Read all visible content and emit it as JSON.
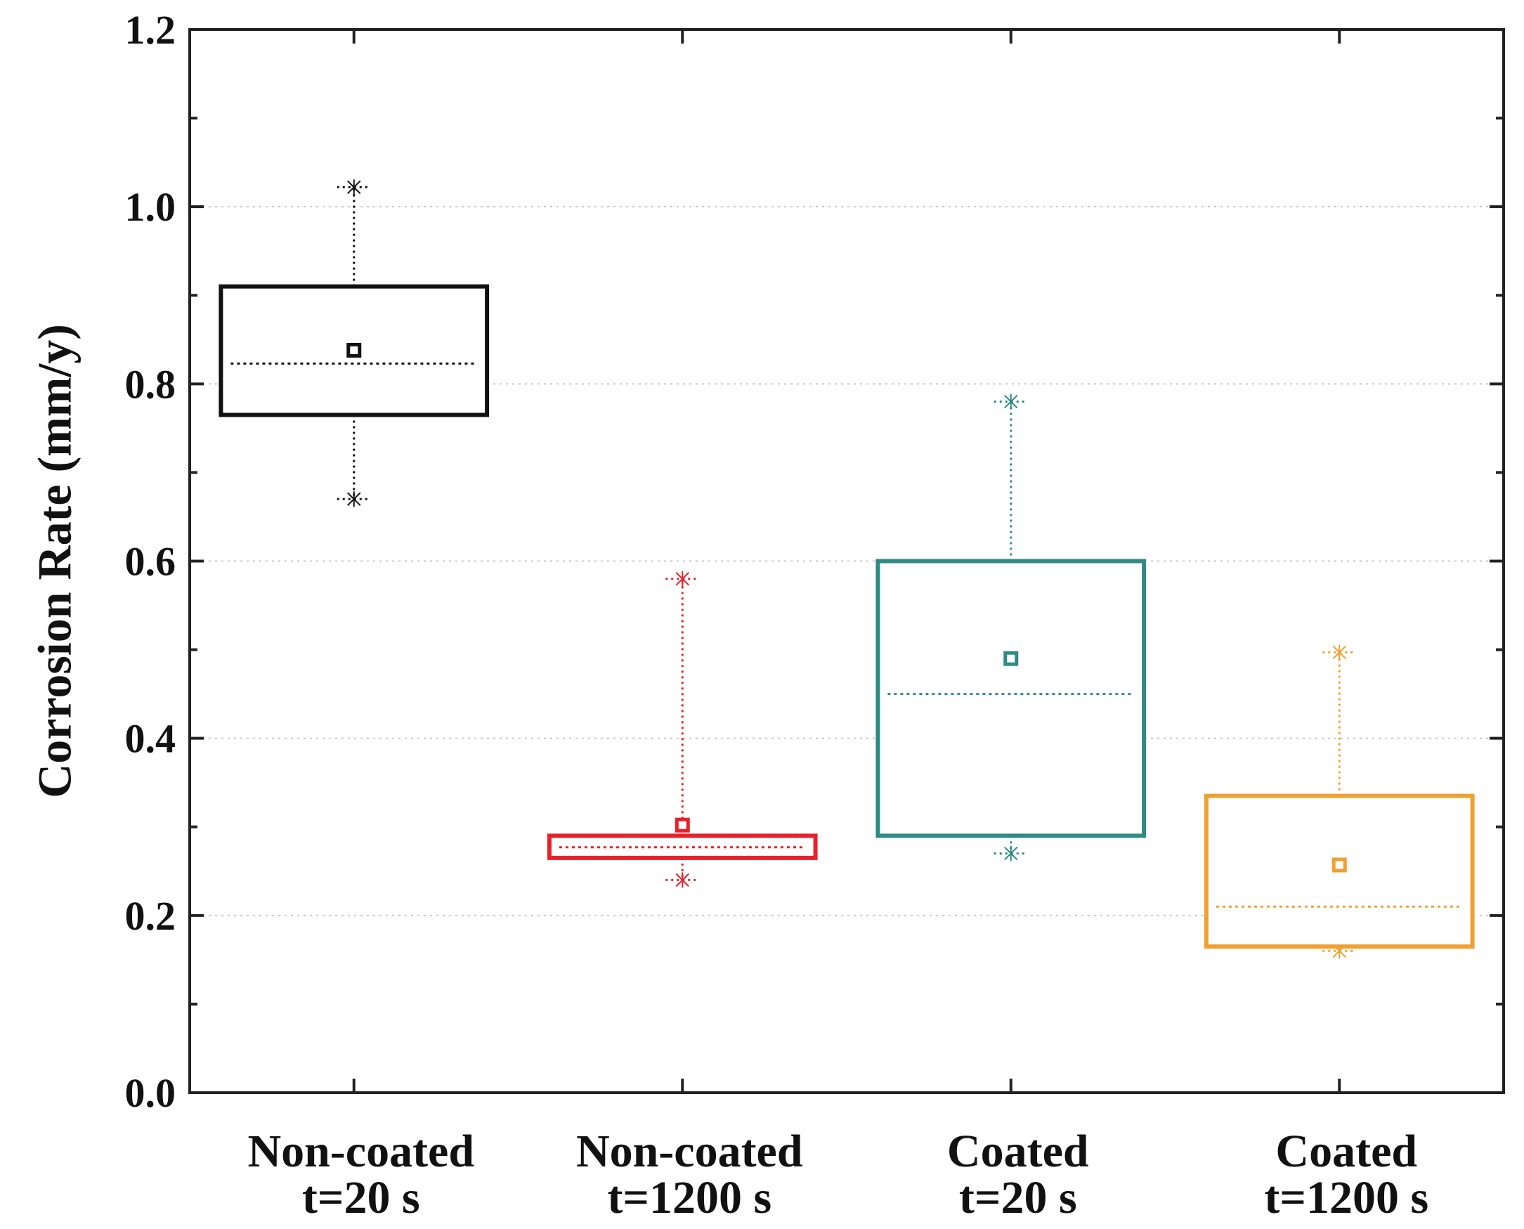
{
  "chart_data": {
    "type": "box",
    "title": "",
    "xlabel": "",
    "ylabel": "Corrosion Rate (mm/y)",
    "ylim": [
      0.0,
      1.2
    ],
    "yticks": [
      "0.0",
      "0.2",
      "0.4",
      "0.6",
      "0.8",
      "1.0",
      "1.2"
    ],
    "grid": "horizontal dotted",
    "legend": "none",
    "categories": [
      {
        "line1": "Non-coated",
        "line2": "t=20 s"
      },
      {
        "line1": "Non-coated",
        "line2": "t=1200 s"
      },
      {
        "line1": "Coated",
        "line2": "t=20 s"
      },
      {
        "line1": "Coated",
        "line2": "t=1200 s"
      }
    ],
    "series": [
      {
        "color": "#111111",
        "whisker_low": 0.67,
        "q1": 0.765,
        "median": 0.823,
        "q3": 0.91,
        "whisker_high": 1.022,
        "mean": 0.838
      },
      {
        "color": "#e8202a",
        "whisker_low": 0.24,
        "q1": 0.265,
        "median": 0.277,
        "q3": 0.29,
        "whisker_high": 0.58,
        "mean": 0.302
      },
      {
        "color": "#2f8a84",
        "whisker_low": 0.27,
        "q1": 0.29,
        "median": 0.45,
        "q3": 0.6,
        "whisker_high": 0.78,
        "mean": 0.49
      },
      {
        "color": "#f0a030",
        "whisker_low": 0.16,
        "q1": 0.165,
        "median": 0.21,
        "q3": 0.335,
        "whisker_high": 0.497,
        "mean": 0.257
      }
    ]
  }
}
